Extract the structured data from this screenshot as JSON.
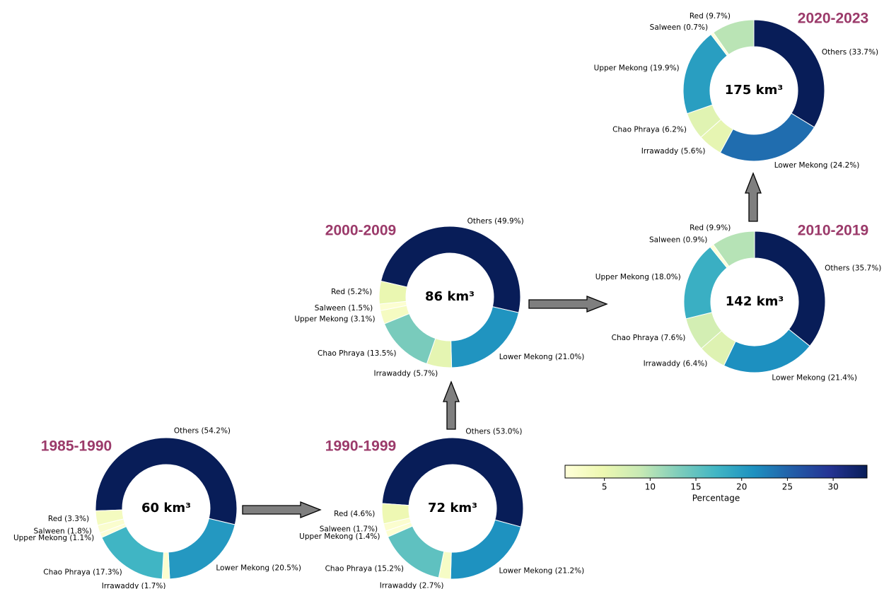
{
  "chart_data": [
    {
      "type": "donut",
      "title": "1985-1990",
      "center_label": "60 km³",
      "startangle": 268,
      "values": [
        54.2,
        20.5,
        1.7,
        17.3,
        1.1,
        1.8,
        3.3
      ],
      "value_labels": [
        "Others (54.2%)",
        "Lower Mekong (20.5%)",
        "Irrawaddy (1.7%)",
        "Chao Phraya (17.3%)",
        "Upper Mekong (1.1%)",
        "Salween (1.8%)",
        "Red (3.3%)"
      ]
    },
    {
      "type": "donut",
      "title": "1990-1999",
      "center_label": "72 km³",
      "startangle": 274,
      "values": [
        53.0,
        21.2,
        2.7,
        15.2,
        1.4,
        1.7,
        4.6
      ],
      "value_labels": [
        "Others (53.0%)",
        "Lower Mekong (21.2%)",
        "Irrawaddy (2.7%)",
        "Chao Phraya (15.2%)",
        "Upper Mekong (1.4%)",
        "Salween (1.7%)",
        "Red (4.6%)"
      ]
    },
    {
      "type": "donut",
      "title": "2000-2009",
      "center_label": "86 km³",
      "startangle": 283,
      "values": [
        49.9,
        21.0,
        5.7,
        13.5,
        3.1,
        1.5,
        5.2
      ],
      "value_labels": [
        "Others (49.9%)",
        "Lower Mekong (21.0%)",
        "Irrawaddy (5.7%)",
        "Chao Phraya (13.5%)",
        "Upper Mekong (3.1%)",
        "Salween (1.5%)",
        "Red (5.2%)"
      ]
    },
    {
      "type": "donut",
      "title": "2010-2019",
      "center_label": "142 km³",
      "startangle": 0,
      "values": [
        35.7,
        21.4,
        6.4,
        7.6,
        18.0,
        0.9,
        9.9
      ],
      "value_labels": [
        "Others (35.7%)",
        "Lower Mekong (21.4%)",
        "Irrawaddy (6.4%)",
        "Chao Phraya (7.6%)",
        "Upper Mekong (18.0%)",
        "Salween (0.9%)",
        "Red (9.9%)"
      ]
    },
    {
      "type": "donut",
      "title": "2020-2023",
      "center_label": "175 km³",
      "startangle": 0,
      "values": [
        33.7,
        24.2,
        5.6,
        6.2,
        19.9,
        0.7,
        9.7
      ],
      "value_labels": [
        "Others (33.7%)",
        "Lower Mekong (24.2%)",
        "Irrawaddy (5.6%)",
        "Chao Phraya (6.2%)",
        "Upper Mekong (19.9%)",
        "Salween (0.7%)",
        "Red (9.7%)"
      ]
    },
    {
      "type": "colorbar",
      "xlabel": "Percentage",
      "xlim": [
        0.7,
        33.7
      ],
      "xticks": [
        5,
        10,
        15,
        20,
        25,
        30
      ],
      "colors": [
        "#ffffd9",
        "#edf8b1",
        "#c7e9b4",
        "#7fcdbb",
        "#41b6c4",
        "#1d91c0",
        "#225ea8",
        "#253494",
        "#081d58"
      ]
    }
  ]
}
